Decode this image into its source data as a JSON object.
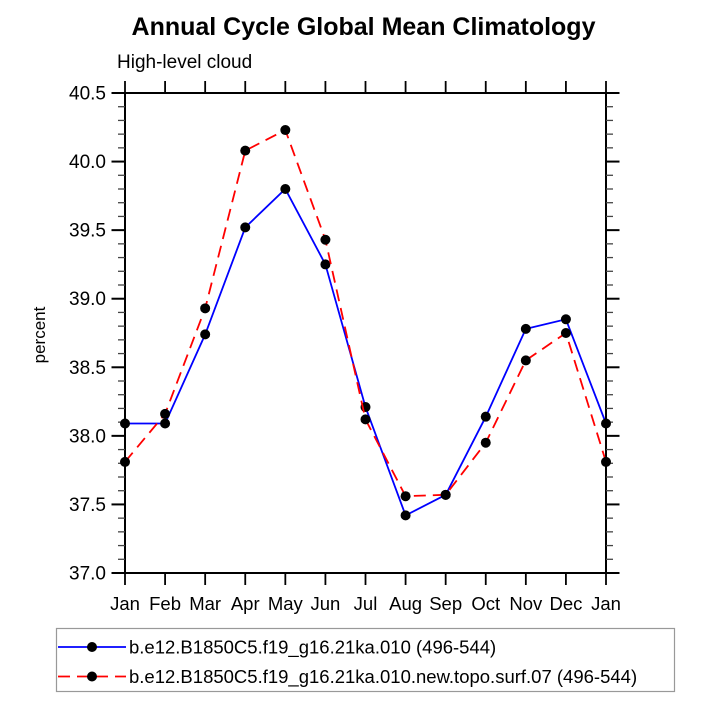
{
  "header": {
    "title": "Annual Cycle Global Mean Climatology",
    "subtitle": "High-level cloud"
  },
  "chart_data": {
    "type": "line",
    "title": "Annual Cycle Global Mean Climatology",
    "subtitle": "High-level cloud",
    "xlabel": "",
    "ylabel": "percent",
    "categories": [
      "Jan",
      "Feb",
      "Mar",
      "Apr",
      "May",
      "Jun",
      "Jul",
      "Aug",
      "Sep",
      "Oct",
      "Nov",
      "Dec",
      "Jan"
    ],
    "ylim": [
      37.0,
      40.5
    ],
    "ytick_step": 0.5,
    "ytick_minor_step": 0.1,
    "grid": false,
    "legend_position": "bottom-left",
    "series": [
      {
        "name": "b.e12.B1850C5.f19_g16.21ka.010 (496-544)",
        "color": "#0000ff",
        "line_style": "solid",
        "marker": "circle",
        "marker_color": "#000000",
        "values": [
          38.09,
          38.09,
          38.74,
          39.52,
          39.8,
          39.25,
          38.21,
          37.42,
          37.57,
          38.14,
          38.78,
          38.85,
          38.09
        ]
      },
      {
        "name": "b.e12.B1850C5.f19_g16.21ka.010.new.topo.surf.07 (496-544)",
        "color": "#ff0000",
        "line_style": "dashed",
        "marker": "circle",
        "marker_color": "#000000",
        "values": [
          37.81,
          38.16,
          38.93,
          40.08,
          40.23,
          39.43,
          38.12,
          37.56,
          37.57,
          37.95,
          38.55,
          38.75,
          37.81
        ]
      }
    ]
  },
  "colors": {
    "background": "#ffffff",
    "axis": "#000000",
    "minor_tick": "#444444",
    "legend_border": "#999999"
  }
}
